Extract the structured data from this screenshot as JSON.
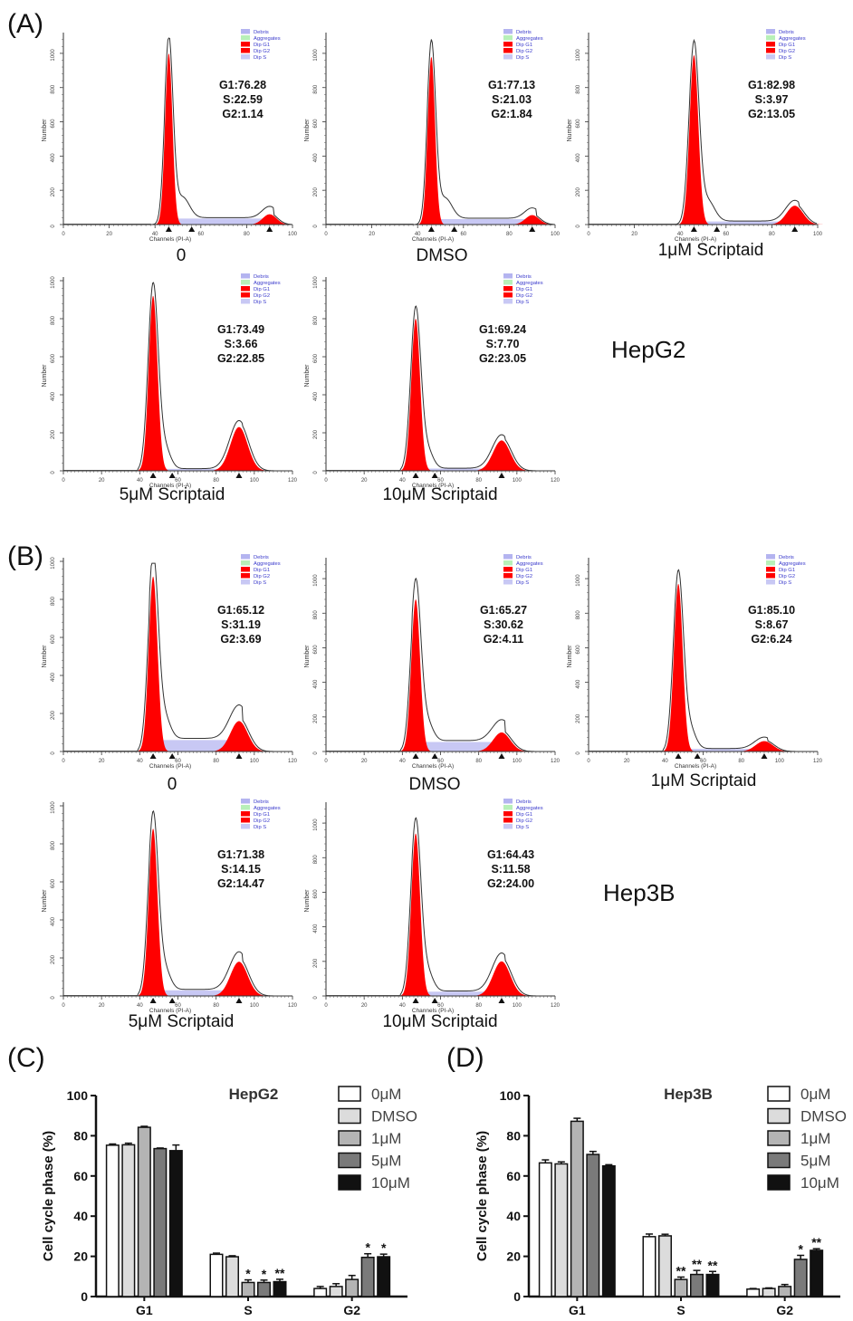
{
  "panel_letters": {
    "A": "(A)",
    "B": "(B)",
    "C": "(C)",
    "D": "(D)"
  },
  "cell_line_labels": {
    "hepg2": "HepG2",
    "hep3b": "Hep3B"
  },
  "histogram_common": {
    "x_axis_label": "Channels (PI-A)",
    "y_axis_label": "Number",
    "legend": [
      "Debris",
      "Aggregates",
      "Dip G1",
      "Dip G2",
      "Dip S"
    ],
    "legend_colors": [
      "#b4b4f0",
      "#b8f0b8",
      "#ff0000",
      "#ff0000",
      "#c8c8f4"
    ]
  },
  "histograms_A": [
    {
      "caption": "0",
      "g1": "G1:76.28",
      "s": "S:22.59",
      "g2": "G2:1.14",
      "x_max": 100,
      "y_max": 1100,
      "g1_height": 1000,
      "g2_height": 60,
      "s_level": 35,
      "sigma1": 1.6,
      "sigma2": 3.0
    },
    {
      "caption": "DMSO",
      "g1": "G1:77.13",
      "s": "S:21.03",
      "g2": "G2:1.84",
      "x_max": 100,
      "y_max": 1100,
      "g1_height": 980,
      "g2_height": 55,
      "s_level": 32,
      "sigma1": 1.6,
      "sigma2": 3.0
    },
    {
      "caption": "1μM Scriptaid",
      "g1": "G1:82.98",
      "s": "S:3.97",
      "g2": "G2:13.05",
      "x_max": 100,
      "y_max": 1100,
      "g1_height": 990,
      "g2_height": 110,
      "s_level": 18,
      "sigma1": 1.9,
      "sigma2": 3.6
    },
    {
      "caption": "5μM Scriptaid",
      "g1": "G1:73.49",
      "s": "S:3.66",
      "g2": "G2:22.85",
      "x_max": 120,
      "y_max": 1000,
      "g1_height": 920,
      "g2_height": 230,
      "s_level": 10,
      "sigma1": 2.3,
      "sigma2": 4.5
    },
    {
      "caption": "10μM Scriptaid",
      "g1": "G1:69.24",
      "s": "S:7.70",
      "g2": "G2:23.05",
      "x_max": 120,
      "y_max": 1000,
      "g1_height": 800,
      "g2_height": 160,
      "s_level": 12,
      "sigma1": 2.3,
      "sigma2": 4.5
    }
  ],
  "histograms_B": [
    {
      "caption": "0",
      "g1": "G1:65.12",
      "s": "S:31.19",
      "g2": "G2:3.69",
      "x_max": 120,
      "y_max": 1000,
      "g1_height": 920,
      "g2_height": 160,
      "s_level": 60,
      "sigma1": 2.3,
      "sigma2": 4.5
    },
    {
      "caption": "DMSO",
      "g1": "G1:65.27",
      "s": "S:30.62",
      "g2": "G2:4.11",
      "x_max": 120,
      "y_max": 1100,
      "g1_height": 880,
      "g2_height": 110,
      "s_level": 55,
      "sigma1": 2.3,
      "sigma2": 4.5
    },
    {
      "caption": "1μM Scriptaid",
      "g1": "G1:85.10",
      "s": "S:8.67",
      "g2": "G2:6.24",
      "x_max": 120,
      "y_max": 1100,
      "g1_height": 970,
      "g2_height": 60,
      "s_level": 15,
      "sigma1": 2.3,
      "sigma2": 4.5
    },
    {
      "caption": "5μM Scriptaid",
      "g1": "G1:71.38",
      "s": "S:14.15",
      "g2": "G2:14.47",
      "x_max": 120,
      "y_max": 1000,
      "g1_height": 880,
      "g2_height": 180,
      "s_level": 30,
      "sigma1": 2.3,
      "sigma2": 4.5
    },
    {
      "caption": "10μM Scriptaid",
      "g1": "G1:64.43",
      "s": "S:11.58",
      "g2": "G2:24.00",
      "x_max": 120,
      "y_max": 1100,
      "g1_height": 940,
      "g2_height": 200,
      "s_level": 25,
      "sigma1": 2.3,
      "sigma2": 4.5
    }
  ],
  "chart_data": [
    {
      "type": "bar",
      "title": "HepG2",
      "xlabel": "",
      "ylabel": "Cell cycle phase (%)",
      "ylim": [
        0,
        100
      ],
      "categories": [
        "G1",
        "S",
        "G2"
      ],
      "series": [
        {
          "name": "0μM",
          "color": "#ffffff",
          "values": [
            75.3,
            21.0,
            4.0
          ],
          "errors": [
            0.6,
            0.6,
            1.0
          ],
          "sig": [
            "",
            "",
            ""
          ]
        },
        {
          "name": "DMSO",
          "color": "#dcdcdc",
          "values": [
            75.5,
            19.8,
            5.0
          ],
          "errors": [
            0.8,
            0.5,
            1.4
          ],
          "sig": [
            "",
            "",
            ""
          ]
        },
        {
          "name": "1μM",
          "color": "#b4b4b4",
          "values": [
            84.2,
            7.0,
            8.5
          ],
          "errors": [
            0.5,
            1.3,
            2.0
          ],
          "sig": [
            "",
            "*",
            ""
          ]
        },
        {
          "name": "5μM",
          "color": "#7a7a7a",
          "values": [
            73.6,
            7.0,
            19.5
          ],
          "errors": [
            0.3,
            1.2,
            1.8
          ],
          "sig": [
            "",
            "*",
            "*"
          ]
        },
        {
          "name": "10μM",
          "color": "#111111",
          "values": [
            72.6,
            7.4,
            19.8
          ],
          "errors": [
            2.8,
            1.2,
            1.3
          ],
          "sig": [
            "",
            "**",
            "*"
          ]
        }
      ],
      "legend_placement": "top-right"
    },
    {
      "type": "bar",
      "title": "Hep3B",
      "xlabel": "",
      "ylabel": "Cell cycle phase (%)",
      "ylim": [
        0,
        100
      ],
      "categories": [
        "G1",
        "S",
        "G2"
      ],
      "series": [
        {
          "name": "0μM",
          "color": "#ffffff",
          "values": [
            66.5,
            29.8,
            3.7
          ],
          "errors": [
            1.5,
            1.3,
            0.3
          ],
          "sig": [
            "",
            "",
            ""
          ]
        },
        {
          "name": "DMSO",
          "color": "#dcdcdc",
          "values": [
            66.0,
            30.2,
            4.0
          ],
          "errors": [
            1.0,
            0.8,
            0.3
          ],
          "sig": [
            "",
            "",
            ""
          ]
        },
        {
          "name": "1μM",
          "color": "#b4b4b4",
          "values": [
            87.2,
            8.5,
            5.0
          ],
          "errors": [
            1.5,
            1.2,
            1.0
          ],
          "sig": [
            "",
            "**",
            ""
          ]
        },
        {
          "name": "5μM",
          "color": "#7a7a7a",
          "values": [
            70.7,
            11.0,
            18.5
          ],
          "errors": [
            1.5,
            2.0,
            2.0
          ],
          "sig": [
            "",
            "**",
            "*"
          ]
        },
        {
          "name": "10μM",
          "color": "#111111",
          "values": [
            65.0,
            11.0,
            23.0
          ],
          "errors": [
            0.6,
            1.5,
            0.8
          ],
          "sig": [
            "",
            "**",
            "**"
          ]
        }
      ],
      "legend_placement": "top-right"
    }
  ]
}
